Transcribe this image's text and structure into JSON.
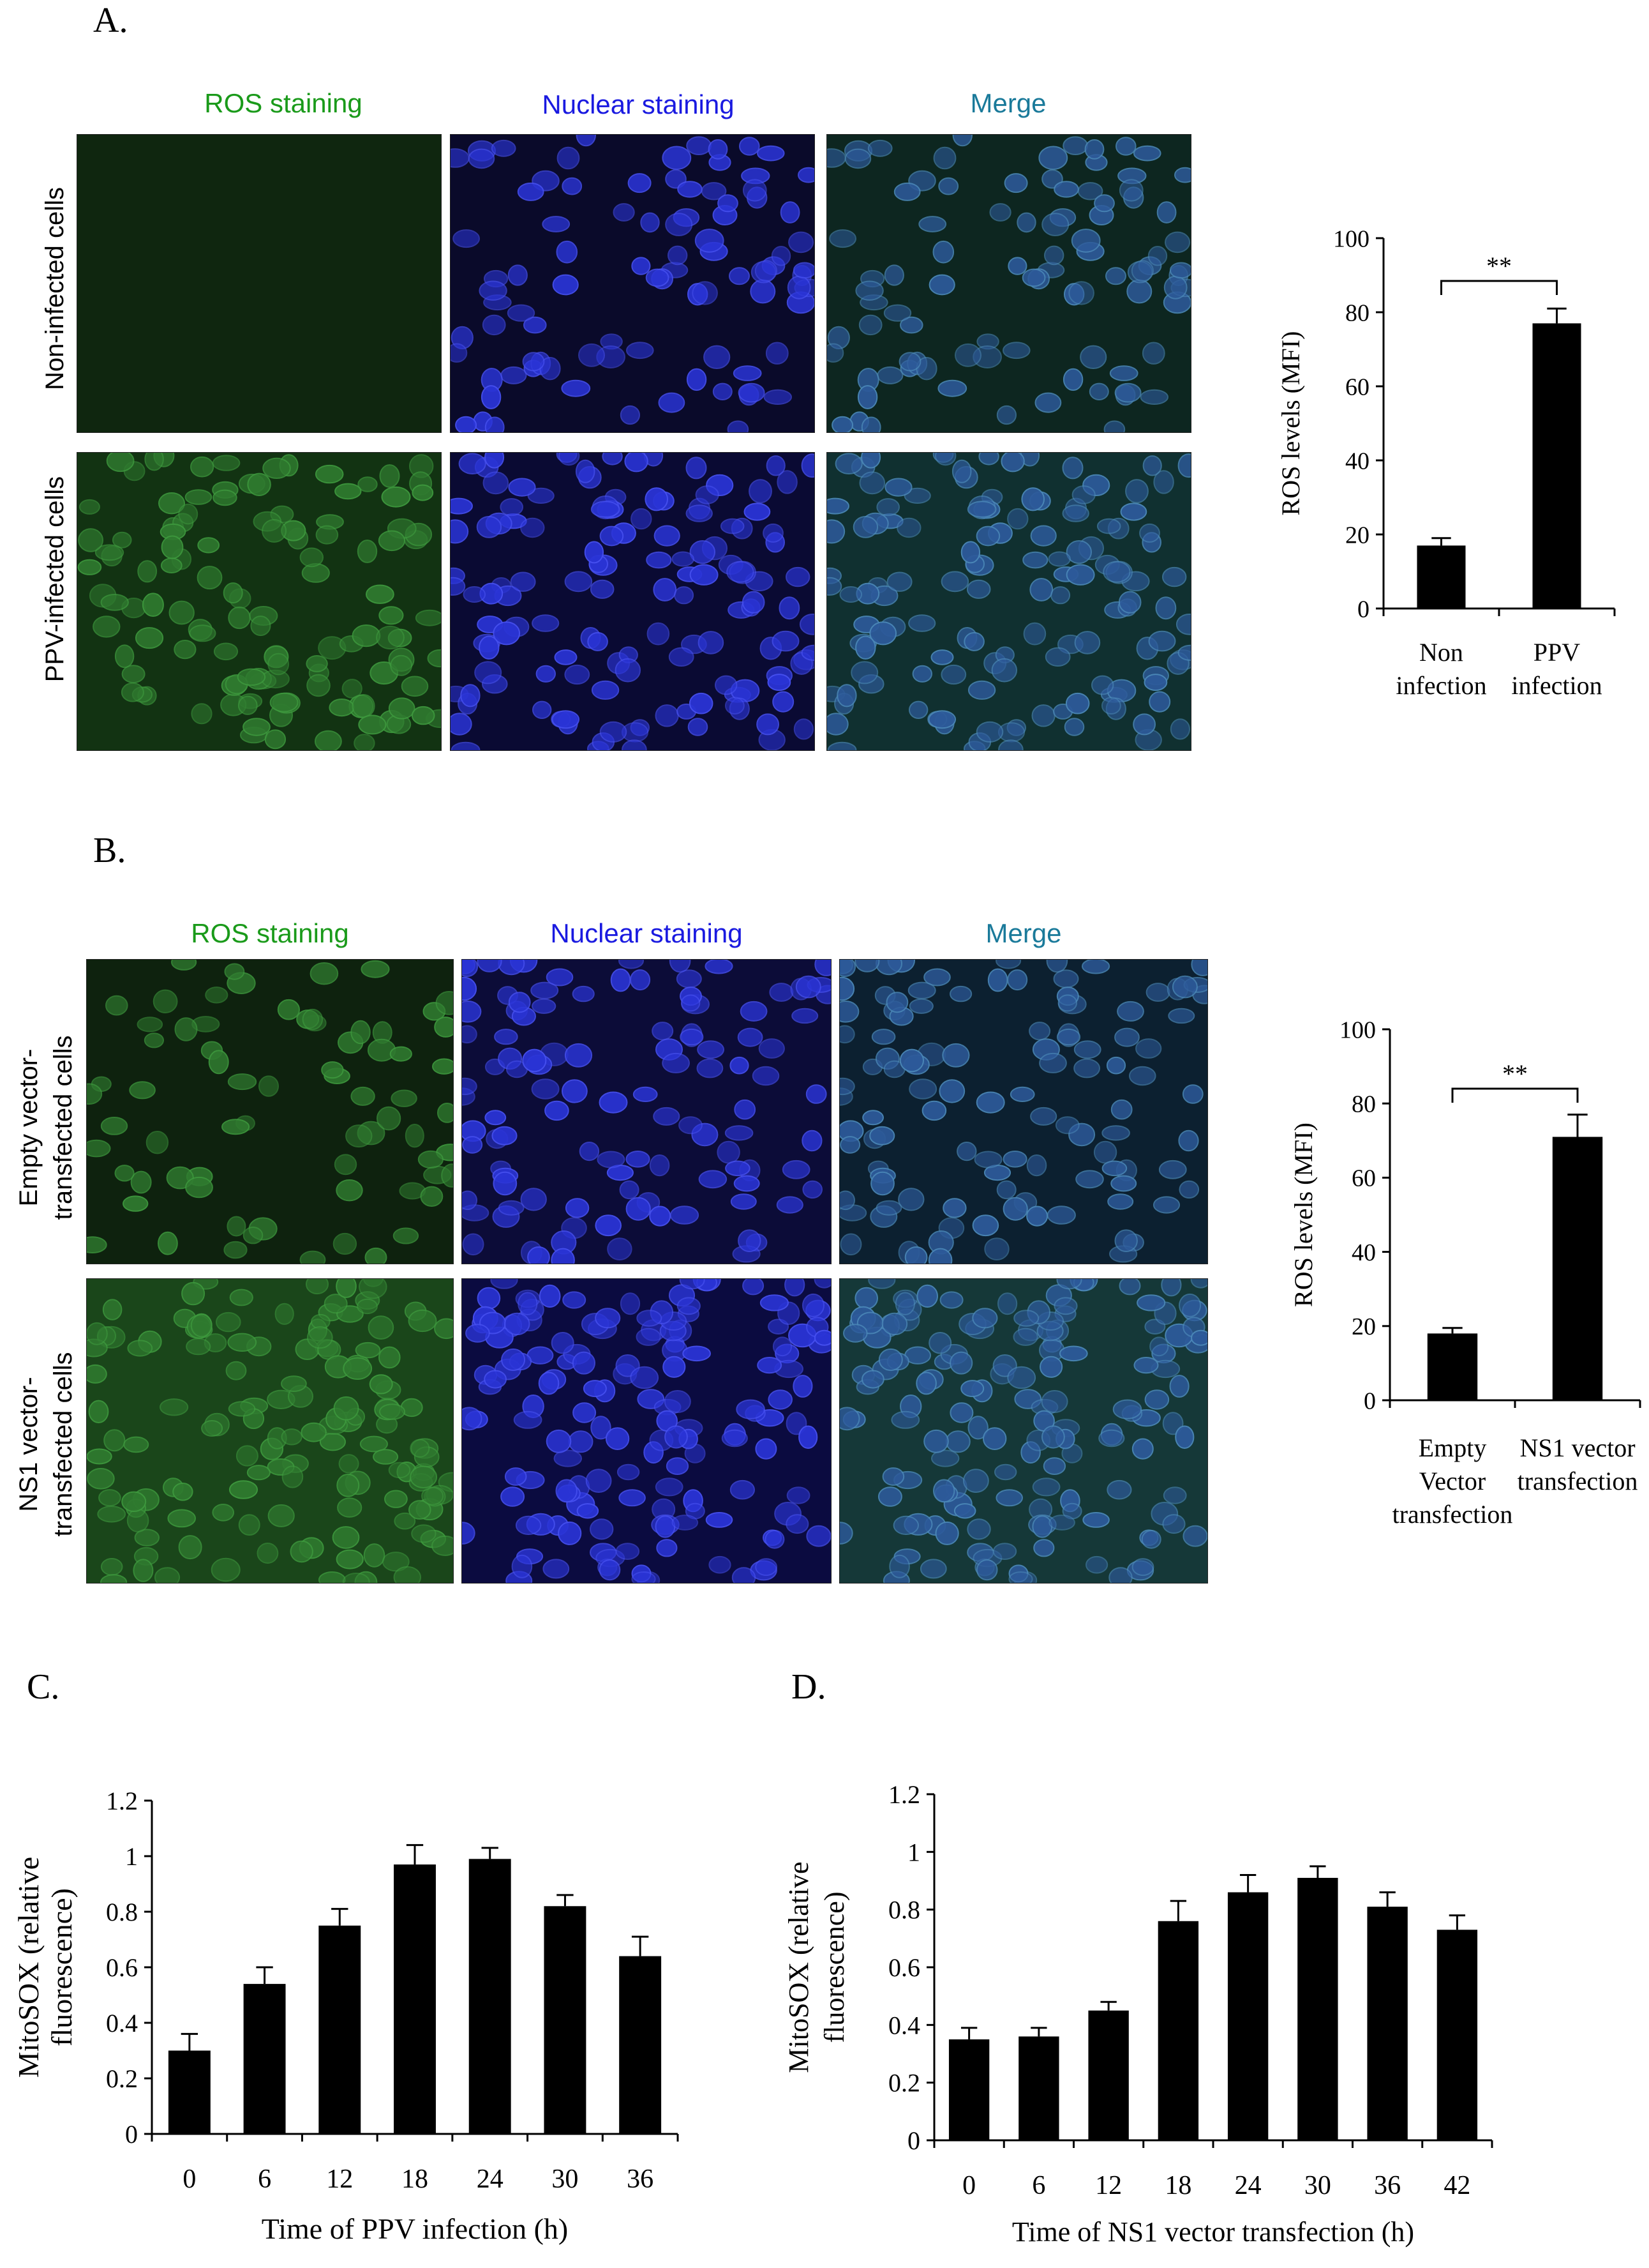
{
  "panels": {
    "A": {
      "letter": "A.",
      "columns": [
        "ROS staining",
        "Nuclear staining",
        "Merge"
      ],
      "rows": [
        "Non-infected cells",
        "PPV-infected cells"
      ]
    },
    "B": {
      "letter": "B.",
      "columns": [
        "ROS staining",
        "Nuclear staining",
        "Merge"
      ],
      "rows": [
        [
          "Empty vector-",
          "transfected cells"
        ],
        [
          "NS1 vector-",
          "transfected cells"
        ]
      ]
    },
    "C": {
      "letter": "C."
    },
    "D": {
      "letter": "D."
    }
  },
  "colors": {
    "ros_label": "#1a9a1a",
    "nuclear_label": "#1a1ae0",
    "merge_label": "#1a7a9a",
    "bar": "#000000"
  },
  "chart_data": [
    {
      "id": "A-bar",
      "type": "bar",
      "categories": [
        [
          "Non",
          "infection"
        ],
        [
          "PPV",
          "infection"
        ]
      ],
      "values": [
        17,
        77
      ],
      "errors": [
        2,
        4
      ],
      "ylabel": "ROS levels (MFI)",
      "ylim": [
        0,
        100
      ],
      "yticks": [
        0,
        20,
        40,
        60,
        80,
        100
      ],
      "significance": "**"
    },
    {
      "id": "B-bar",
      "type": "bar",
      "categories": [
        [
          "Empty",
          "Vector",
          "transfection"
        ],
        [
          "NS1 vector",
          "transfection"
        ]
      ],
      "values": [
        18,
        71
      ],
      "errors": [
        1.5,
        6
      ],
      "ylabel": "ROS levels (MFI)",
      "ylim": [
        0,
        100
      ],
      "yticks": [
        0,
        20,
        40,
        60,
        80,
        100
      ],
      "significance": "**"
    },
    {
      "id": "C-bar",
      "type": "bar",
      "categories": [
        "0",
        "6",
        "12",
        "18",
        "24",
        "30",
        "36"
      ],
      "values": [
        0.3,
        0.54,
        0.75,
        0.97,
        0.99,
        0.82,
        0.64
      ],
      "errors": [
        0.06,
        0.06,
        0.06,
        0.07,
        0.04,
        0.04,
        0.07
      ],
      "xlabel": "Time of PPV infection (h)",
      "ylabel": [
        "MitoSOX (relative",
        "fluorescence)"
      ],
      "ylim": [
        0,
        1.2
      ],
      "yticks": [
        "0",
        "0.2",
        "0.4",
        "0.6",
        "0.8",
        "1",
        "1.2"
      ]
    },
    {
      "id": "D-bar",
      "type": "bar",
      "categories": [
        "0",
        "6",
        "12",
        "18",
        "24",
        "30",
        "36",
        "42"
      ],
      "values": [
        0.35,
        0.36,
        0.45,
        0.76,
        0.86,
        0.91,
        0.81,
        0.73
      ],
      "errors": [
        0.04,
        0.03,
        0.03,
        0.07,
        0.06,
        0.04,
        0.05,
        0.05
      ],
      "xlabel": "Time of NS1 vector transfection (h)",
      "ylabel": [
        "MitoSOX (relative",
        "fluorescence)"
      ],
      "ylim": [
        0,
        1.2
      ],
      "yticks": [
        "0",
        "0.2",
        "0.4",
        "0.6",
        "0.8",
        "1",
        "1.2"
      ]
    }
  ]
}
